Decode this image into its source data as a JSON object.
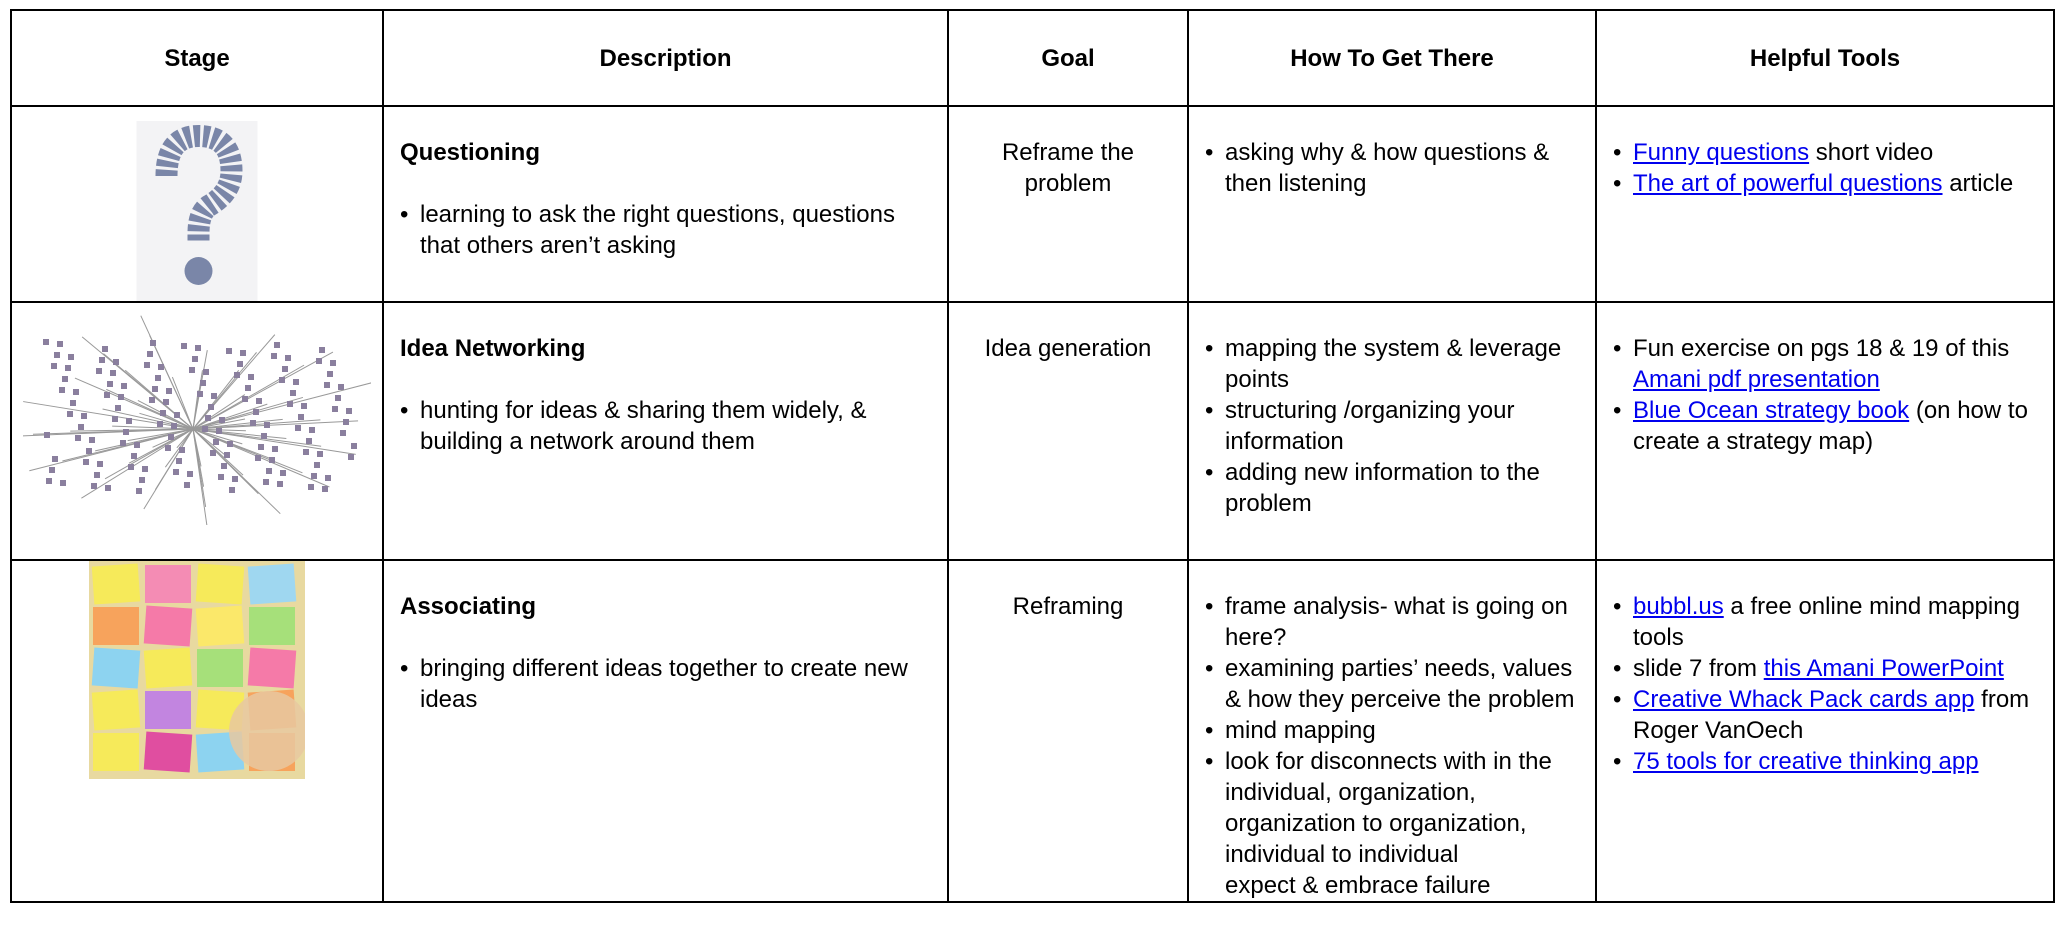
{
  "table": {
    "headers": [
      "Stage",
      "Description",
      "Goal",
      "How To Get There",
      "Helpful Tools"
    ],
    "rows": [
      {
        "title": "Questioning",
        "description": [
          "learning to ask the right questions, questions that others aren’t asking"
        ],
        "goal": "Reframe the problem",
        "how": [
          "asking why & how questions & then listening"
        ],
        "tools": [
          [
            {
              "link": "Funny questions"
            },
            {
              "text": "short video"
            }
          ],
          [
            {
              "link": "The art of powerful questions"
            },
            {
              "text": "article"
            }
          ]
        ]
      },
      {
        "title": "Idea Networking",
        "description": [
          "hunting for ideas & sharing them widely, & building a network around them"
        ],
        "goal": "Idea generation",
        "how": [
          "mapping the system & leverage points",
          "structuring /organizing your information",
          "adding new information to the problem"
        ],
        "tools": [
          [
            {
              "text": "Fun exercise on pgs 18 & 19 of this"
            },
            {
              "link": "Amani pdf presentation"
            }
          ],
          [
            {
              "link": "Blue Ocean strategy book"
            },
            {
              "text": "(on how to create a strategy map)"
            }
          ]
        ]
      },
      {
        "title": "Associating",
        "description": [
          "bringing different ideas together to create new ideas"
        ],
        "goal": "Reframing",
        "how": [
          "frame analysis- what is going on here?",
          "examining parties’ needs, values & how they perceive the problem",
          "mind mapping",
          "look for disconnects with in the individual, organization, organization to organization, individual to individual"
        ],
        "how_extra": "expect & embrace failure",
        "tools": [
          [
            {
              "link": "bubbl.us"
            },
            {
              "text": "a free online mind mapping tools"
            }
          ],
          [
            {
              "text": "slide 7 from"
            },
            {
              "link": "this Amani PowerPoint"
            }
          ],
          [
            {
              "link": "Creative Whack Pack cards app"
            },
            {
              "text": "from Roger VanOech"
            }
          ],
          [
            {
              "link": "75 tools for creative thinking app"
            }
          ]
        ]
      }
    ]
  }
}
